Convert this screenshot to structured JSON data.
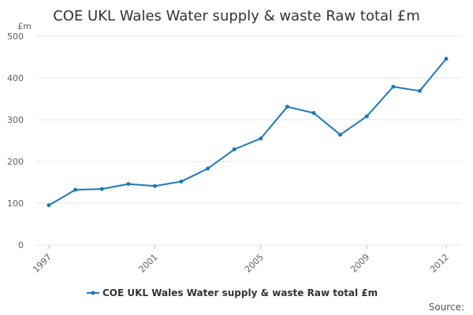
{
  "chart_data": {
    "type": "line",
    "title": "COE UKL Wales Water supply & waste Raw total £m",
    "ylabel": "£m",
    "xlabel": "",
    "ylim": [
      0,
      500
    ],
    "y_ticks": [
      "0",
      "100",
      "200",
      "300",
      "400",
      "500"
    ],
    "x_tick_labels": [
      "1997",
      "2001",
      "2005",
      "2009",
      "2012"
    ],
    "grid": true,
    "x": [
      1997,
      1998,
      1999,
      2000,
      2001,
      2002,
      2003,
      2004,
      2005,
      2006,
      2007,
      2008,
      2009,
      2010,
      2011,
      2012
    ],
    "series": [
      {
        "name": "COE UKL Wales Water supply & waste Raw total £m",
        "color": "#1a7ab8",
        "values": [
          95,
          132,
          134,
          146,
          141,
          152,
          183,
          229,
          255,
          331,
          316,
          264,
          308,
          379,
          369,
          446
        ]
      }
    ],
    "legend": "bottom-center",
    "source_label": "Source:"
  }
}
